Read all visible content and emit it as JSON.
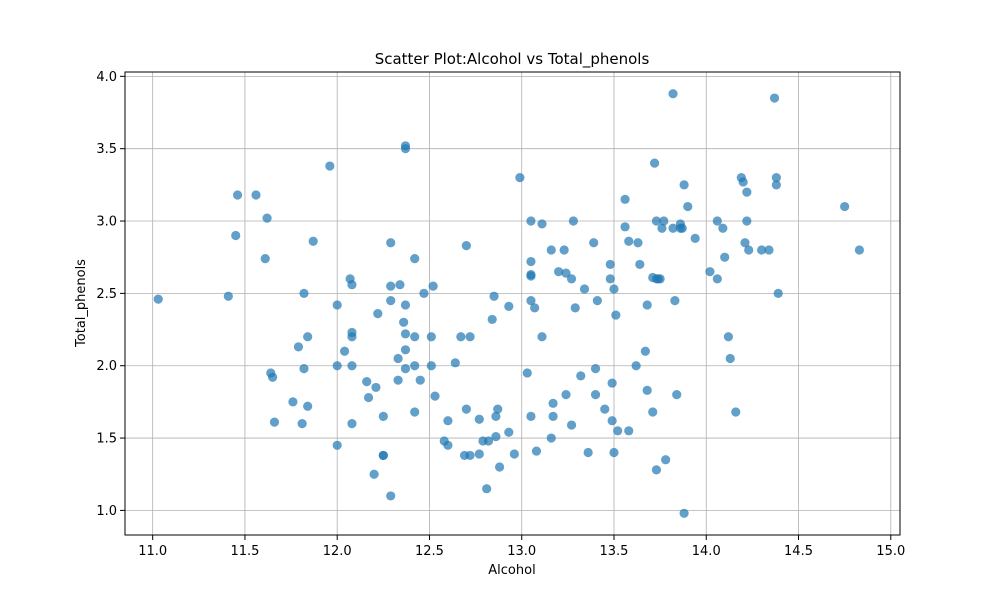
{
  "chart_data": {
    "type": "scatter",
    "title": "Scatter Plot:Alcohol vs Total_phenols",
    "xlabel": "Alcohol",
    "ylabel": "Total_phenols",
    "xlim": [
      10.85,
      15.05
    ],
    "ylim": [
      0.83,
      4.03
    ],
    "xticks": [
      "11.0",
      "11.5",
      "12.0",
      "12.5",
      "13.0",
      "13.5",
      "14.0",
      "14.5",
      "15.0"
    ],
    "yticks": [
      "1.0",
      "1.5",
      "2.0",
      "2.5",
      "3.0",
      "3.5",
      "4.0"
    ],
    "grid": true,
    "marker_color": "#1f77b4",
    "marker_alpha": 0.7,
    "points": [
      [
        11.03,
        2.46
      ],
      [
        11.41,
        2.48
      ],
      [
        11.45,
        2.9
      ],
      [
        11.46,
        3.18
      ],
      [
        11.56,
        3.18
      ],
      [
        11.61,
        2.74
      ],
      [
        11.62,
        3.02
      ],
      [
        11.64,
        1.95
      ],
      [
        11.65,
        1.92
      ],
      [
        11.66,
        1.61
      ],
      [
        11.76,
        1.75
      ],
      [
        11.79,
        2.13
      ],
      [
        11.81,
        1.6
      ],
      [
        11.82,
        2.5
      ],
      [
        11.82,
        1.98
      ],
      [
        11.84,
        2.2
      ],
      [
        11.84,
        1.72
      ],
      [
        11.87,
        2.86
      ],
      [
        11.96,
        3.38
      ],
      [
        12.0,
        2.42
      ],
      [
        12.0,
        2.0
      ],
      [
        12.0,
        1.45
      ],
      [
        12.04,
        2.1
      ],
      [
        12.07,
        2.6
      ],
      [
        12.08,
        2.56
      ],
      [
        12.08,
        2.23
      ],
      [
        12.08,
        2.2
      ],
      [
        12.08,
        2.0
      ],
      [
        12.08,
        1.6
      ],
      [
        12.16,
        1.89
      ],
      [
        12.17,
        1.78
      ],
      [
        12.2,
        1.25
      ],
      [
        12.21,
        1.85
      ],
      [
        12.22,
        2.36
      ],
      [
        12.25,
        1.65
      ],
      [
        12.25,
        1.38
      ],
      [
        12.25,
        1.38
      ],
      [
        12.29,
        2.85
      ],
      [
        12.29,
        2.55
      ],
      [
        12.29,
        2.45
      ],
      [
        12.29,
        1.1
      ],
      [
        12.33,
        2.05
      ],
      [
        12.33,
        1.9
      ],
      [
        12.34,
        2.56
      ],
      [
        12.36,
        2.3
      ],
      [
        12.37,
        3.52
      ],
      [
        12.37,
        3.5
      ],
      [
        12.37,
        2.42
      ],
      [
        12.37,
        2.22
      ],
      [
        12.37,
        2.11
      ],
      [
        12.37,
        1.98
      ],
      [
        12.42,
        2.74
      ],
      [
        12.42,
        2.2
      ],
      [
        12.42,
        2.0
      ],
      [
        12.42,
        1.68
      ],
      [
        12.45,
        1.9
      ],
      [
        12.47,
        2.5
      ],
      [
        12.51,
        2.2
      ],
      [
        12.51,
        2.0
      ],
      [
        12.52,
        2.55
      ],
      [
        12.53,
        1.79
      ],
      [
        12.58,
        1.48
      ],
      [
        12.6,
        1.45
      ],
      [
        12.6,
        1.62
      ],
      [
        12.64,
        2.02
      ],
      [
        12.67,
        2.2
      ],
      [
        12.69,
        1.38
      ],
      [
        12.7,
        2.83
      ],
      [
        12.7,
        1.7
      ],
      [
        12.72,
        2.2
      ],
      [
        12.72,
        1.38
      ],
      [
        12.77,
        1.39
      ],
      [
        12.77,
        1.63
      ],
      [
        12.79,
        1.48
      ],
      [
        12.81,
        1.15
      ],
      [
        12.82,
        1.48
      ],
      [
        12.84,
        2.32
      ],
      [
        12.85,
        2.48
      ],
      [
        12.86,
        1.65
      ],
      [
        12.86,
        1.51
      ],
      [
        12.87,
        1.7
      ],
      [
        12.88,
        1.3
      ],
      [
        12.93,
        2.41
      ],
      [
        12.93,
        1.54
      ],
      [
        12.96,
        1.39
      ],
      [
        12.99,
        3.3
      ],
      [
        13.03,
        1.95
      ],
      [
        13.05,
        3.0
      ],
      [
        13.05,
        2.72
      ],
      [
        13.05,
        2.63
      ],
      [
        13.05,
        2.62
      ],
      [
        13.05,
        2.45
      ],
      [
        13.05,
        1.65
      ],
      [
        13.07,
        2.4
      ],
      [
        13.08,
        1.41
      ],
      [
        13.11,
        2.98
      ],
      [
        13.11,
        2.2
      ],
      [
        13.16,
        2.8
      ],
      [
        13.16,
        1.5
      ],
      [
        13.17,
        1.74
      ],
      [
        13.17,
        1.65
      ],
      [
        13.2,
        2.65
      ],
      [
        13.23,
        2.8
      ],
      [
        13.24,
        2.64
      ],
      [
        13.24,
        1.8
      ],
      [
        13.27,
        2.6
      ],
      [
        13.27,
        1.59
      ],
      [
        13.28,
        3.0
      ],
      [
        13.29,
        2.4
      ],
      [
        13.32,
        1.93
      ],
      [
        13.34,
        2.53
      ],
      [
        13.36,
        1.4
      ],
      [
        13.39,
        2.85
      ],
      [
        13.4,
        1.98
      ],
      [
        13.4,
        1.8
      ],
      [
        13.41,
        2.45
      ],
      [
        13.45,
        1.7
      ],
      [
        13.48,
        2.7
      ],
      [
        13.48,
        2.6
      ],
      [
        13.49,
        1.88
      ],
      [
        13.49,
        1.62
      ],
      [
        13.5,
        2.53
      ],
      [
        13.5,
        1.4
      ],
      [
        13.51,
        2.35
      ],
      [
        13.52,
        1.55
      ],
      [
        13.56,
        3.15
      ],
      [
        13.56,
        2.96
      ],
      [
        13.58,
        2.86
      ],
      [
        13.58,
        1.55
      ],
      [
        13.62,
        2.0
      ],
      [
        13.63,
        2.85
      ],
      [
        13.64,
        2.7
      ],
      [
        13.67,
        2.1
      ],
      [
        13.68,
        2.42
      ],
      [
        13.68,
        1.83
      ],
      [
        13.71,
        2.61
      ],
      [
        13.71,
        1.68
      ],
      [
        13.72,
        3.4
      ],
      [
        13.73,
        3.0
      ],
      [
        13.73,
        2.6
      ],
      [
        13.73,
        1.28
      ],
      [
        13.74,
        2.6
      ],
      [
        13.75,
        2.6
      ],
      [
        13.76,
        2.95
      ],
      [
        13.77,
        3.0
      ],
      [
        13.78,
        1.35
      ],
      [
        13.82,
        3.88
      ],
      [
        13.82,
        2.95
      ],
      [
        13.83,
        2.45
      ],
      [
        13.84,
        1.8
      ],
      [
        13.86,
        2.98
      ],
      [
        13.86,
        2.95
      ],
      [
        13.87,
        2.95
      ],
      [
        13.88,
        3.25
      ],
      [
        13.88,
        0.98
      ],
      [
        13.9,
        3.1
      ],
      [
        13.94,
        2.88
      ],
      [
        14.02,
        2.65
      ],
      [
        14.06,
        3.0
      ],
      [
        14.06,
        2.6
      ],
      [
        14.09,
        2.95
      ],
      [
        14.1,
        2.75
      ],
      [
        14.12,
        2.2
      ],
      [
        14.13,
        2.05
      ],
      [
        14.16,
        1.68
      ],
      [
        14.19,
        3.3
      ],
      [
        14.2,
        3.27
      ],
      [
        14.21,
        2.85
      ],
      [
        14.22,
        3.2
      ],
      [
        14.22,
        3.0
      ],
      [
        14.23,
        2.8
      ],
      [
        14.3,
        2.8
      ],
      [
        14.34,
        2.8
      ],
      [
        14.37,
        3.85
      ],
      [
        14.38,
        3.3
      ],
      [
        14.38,
        3.25
      ],
      [
        14.39,
        2.5
      ],
      [
        14.75,
        3.1
      ],
      [
        14.83,
        2.8
      ]
    ]
  }
}
